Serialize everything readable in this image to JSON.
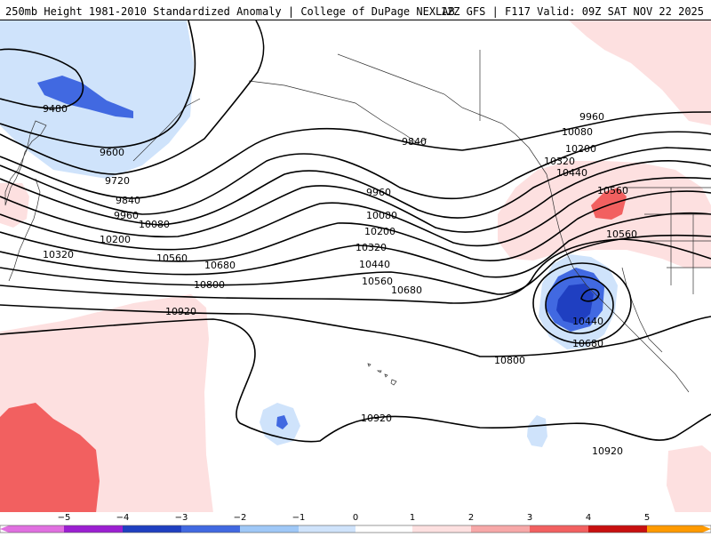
{
  "header": {
    "left_title": "250mb Height 1981-2010 Standardized Anomaly | College of DuPage NEXLAB",
    "right_title": "12Z GFS | F117 Valid: 09Z SAT NOV 22 2025"
  },
  "map": {
    "field": "250mb height contours (m) with standardized anomaly shading",
    "contour_labels": [
      {
        "text": "9480"
      },
      {
        "text": "9600"
      },
      {
        "text": "9720"
      },
      {
        "text": "9840"
      },
      {
        "text": "9840"
      },
      {
        "text": "9960"
      },
      {
        "text": "9960"
      },
      {
        "text": "9960"
      },
      {
        "text": "10080"
      },
      {
        "text": "10080"
      },
      {
        "text": "10080"
      },
      {
        "text": "10200"
      },
      {
        "text": "10200"
      },
      {
        "text": "10200"
      },
      {
        "text": "10320"
      },
      {
        "text": "10320"
      },
      {
        "text": "10320"
      },
      {
        "text": "10440"
      },
      {
        "text": "10440"
      },
      {
        "text": "10440"
      },
      {
        "text": "10560"
      },
      {
        "text": "10560"
      },
      {
        "text": "10560"
      },
      {
        "text": "10560"
      },
      {
        "text": "10680"
      },
      {
        "text": "10680"
      },
      {
        "text": "10680"
      },
      {
        "text": "10800"
      },
      {
        "text": "10800"
      },
      {
        "text": "10920"
      },
      {
        "text": "10920"
      },
      {
        "text": "10920"
      }
    ]
  },
  "colorbar": {
    "tick_labels": [
      "−5",
      "−4",
      "−3",
      "−2",
      "−1",
      "0",
      "1",
      "2",
      "3",
      "4",
      "5"
    ],
    "colors": [
      "#e070e0",
      "#9b1fd1",
      "#1f3fc1",
      "#4169e1",
      "#9fc8f7",
      "#cfe3fb",
      "#ffffff",
      "#fde0e0",
      "#f7a8a8",
      "#f26060",
      "#c81010",
      "#ff9a00"
    ]
  }
}
